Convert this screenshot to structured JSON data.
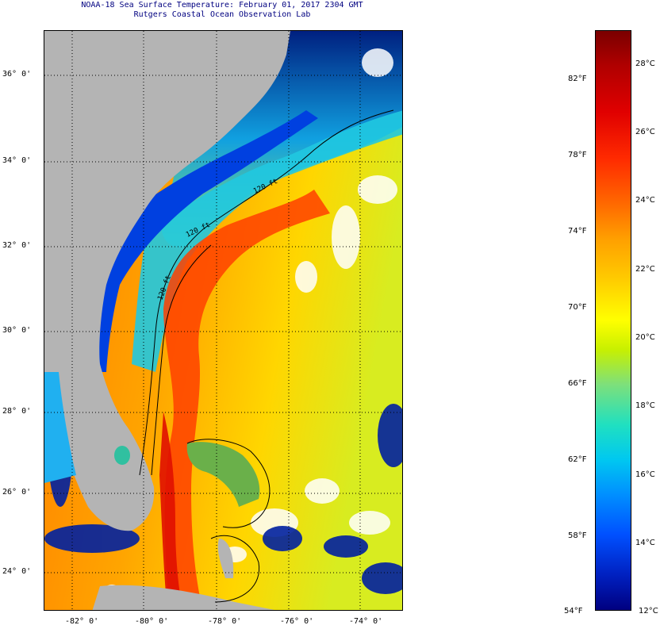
{
  "title": {
    "line1": "NOAA-18 Sea Surface Temperature:  February 01, 2017 2304 GMT",
    "line2": "Rutgers Coastal Ocean Observation Lab"
  },
  "map": {
    "lat_labels": [
      "36° 0'",
      "34° 0'",
      "32° 0'",
      "30° 0'",
      "28° 0'",
      "26° 0'",
      "24° 0'"
    ],
    "lon_labels": [
      "-82° 0'",
      "-80° 0'",
      "-78° 0'",
      "-76° 0'",
      "-74° 0'"
    ],
    "contour_labels": [
      "120 ft",
      "120 ft",
      "120 ft"
    ],
    "colors": {
      "land": "#b4b4b4",
      "warm": "#ff5a00",
      "cold": "#0030c0",
      "cloud": "#ffffff"
    }
  },
  "colorbar": {
    "fahrenheit": [
      "82°F",
      "78°F",
      "74°F",
      "70°F",
      "66°F",
      "62°F",
      "58°F",
      "54°F"
    ],
    "celsius": [
      "28°C",
      "26°C",
      "24°C",
      "22°C",
      "20°C",
      "18°C",
      "16°C",
      "14°C",
      "12°C"
    ]
  }
}
